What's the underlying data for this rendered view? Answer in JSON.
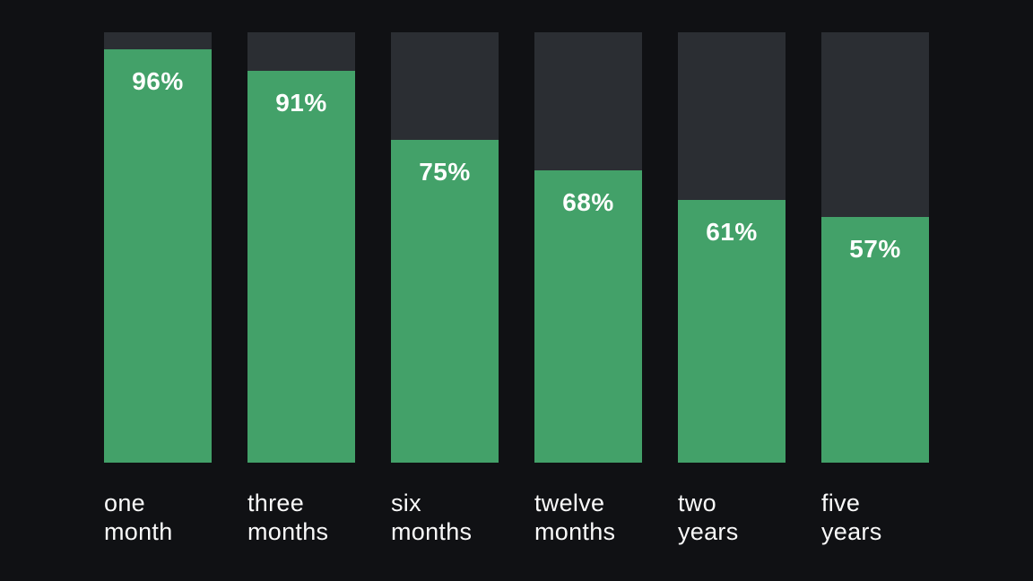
{
  "chart_data": {
    "type": "bar",
    "title": "",
    "xlabel": "",
    "ylabel": "",
    "ylim": [
      0,
      100
    ],
    "grid": false,
    "legend": false,
    "categories": [
      "one month",
      "three months",
      "six months",
      "twelve months",
      "two years",
      "five years"
    ],
    "values": [
      96,
      91,
      75,
      68,
      61,
      57
    ],
    "value_labels": [
      "96%",
      "91%",
      "75%",
      "68%",
      "61%",
      "57%"
    ],
    "colors": {
      "background": "#101114",
      "bar_track": "#2b2e33",
      "bar_fill": "#43a169",
      "text": "#ffffff"
    }
  }
}
